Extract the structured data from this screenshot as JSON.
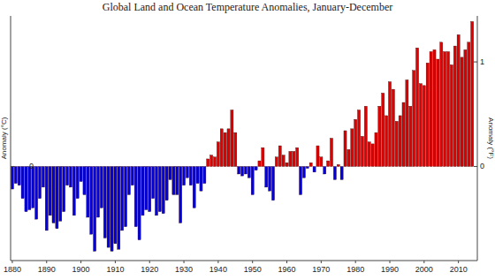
{
  "chart_data": {
    "type": "bar",
    "title": "Global Land and Ocean Temperature Anomalies, January-December",
    "ylabel": "Anomaly (°C)",
    "y2label": "Anomaly (°F)",
    "x": [
      1880,
      1881,
      1882,
      1883,
      1884,
      1885,
      1886,
      1887,
      1888,
      1889,
      1890,
      1891,
      1892,
      1893,
      1894,
      1895,
      1896,
      1897,
      1898,
      1899,
      1900,
      1901,
      1902,
      1903,
      1904,
      1905,
      1906,
      1907,
      1908,
      1909,
      1910,
      1911,
      1912,
      1913,
      1914,
      1915,
      1916,
      1917,
      1918,
      1919,
      1920,
      1921,
      1922,
      1923,
      1924,
      1925,
      1926,
      1927,
      1928,
      1929,
      1930,
      1931,
      1932,
      1933,
      1934,
      1935,
      1936,
      1937,
      1938,
      1939,
      1940,
      1941,
      1942,
      1943,
      1944,
      1945,
      1946,
      1947,
      1948,
      1949,
      1950,
      1951,
      1952,
      1953,
      1954,
      1955,
      1956,
      1957,
      1958,
      1959,
      1960,
      1961,
      1962,
      1963,
      1964,
      1965,
      1966,
      1967,
      1968,
      1969,
      1970,
      1971,
      1972,
      1973,
      1974,
      1975,
      1976,
      1977,
      1978,
      1979,
      1980,
      1981,
      1982,
      1983,
      1984,
      1985,
      1986,
      1987,
      1988,
      1989,
      1990,
      1991,
      1992,
      1993,
      1994,
      1995,
      1996,
      1997,
      1998,
      1999,
      2000,
      2001,
      2002,
      2003,
      2004,
      2005,
      2006,
      2007,
      2008,
      2009,
      2010,
      2011,
      2012,
      2013,
      2014
    ],
    "values": [
      -0.12,
      -0.09,
      -0.1,
      -0.17,
      -0.24,
      -0.23,
      -0.22,
      -0.28,
      -0.17,
      -0.11,
      -0.34,
      -0.26,
      -0.3,
      -0.33,
      -0.29,
      -0.24,
      -0.1,
      -0.11,
      -0.26,
      -0.17,
      -0.08,
      -0.15,
      -0.27,
      -0.36,
      -0.45,
      -0.27,
      -0.22,
      -0.38,
      -0.43,
      -0.45,
      -0.41,
      -0.44,
      -0.34,
      -0.32,
      -0.15,
      -0.1,
      -0.32,
      -0.39,
      -0.26,
      -0.23,
      -0.24,
      -0.17,
      -0.26,
      -0.24,
      -0.25,
      -0.18,
      -0.07,
      -0.15,
      -0.15,
      -0.3,
      -0.1,
      -0.06,
      -0.1,
      -0.22,
      -0.09,
      -0.13,
      -0.09,
      0.04,
      0.06,
      0.05,
      0.13,
      0.2,
      0.18,
      0.2,
      0.3,
      0.18,
      -0.04,
      -0.05,
      -0.04,
      -0.06,
      -0.15,
      -0.02,
      0.03,
      0.1,
      -0.11,
      -0.13,
      -0.18,
      0.05,
      0.11,
      0.06,
      0.02,
      0.08,
      0.08,
      0.1,
      -0.15,
      -0.06,
      -0.01,
      0.02,
      -0.03,
      0.11,
      0.05,
      -0.04,
      0.03,
      0.15,
      -0.07,
      0.01,
      -0.07,
      0.19,
      0.09,
      0.2,
      0.25,
      0.3,
      0.16,
      0.32,
      0.13,
      0.12,
      0.18,
      0.32,
      0.39,
      0.27,
      0.45,
      0.41,
      0.24,
      0.27,
      0.34,
      0.46,
      0.32,
      0.51,
      0.63,
      0.44,
      0.43,
      0.55,
      0.61,
      0.62,
      0.57,
      0.66,
      0.61,
      0.61,
      0.54,
      0.64,
      0.7,
      0.58,
      0.62,
      0.66,
      0.77
    ],
    "colors": [
      "#0000e0",
      "#0000e0",
      "#0000e0",
      "#0000e0",
      "#0000e0",
      "#0000e0",
      "#0000e0",
      "#0000e0",
      "#0000e0",
      "#0000e0",
      "#0000e0",
      "#0000e0",
      "#0000e0",
      "#0000e0",
      "#0000e0",
      "#0000e0",
      "#0000e0",
      "#0000e0",
      "#0000e0",
      "#0000e0",
      "#0000e0",
      "#0000e0",
      "#0000e0",
      "#0000e0",
      "#0000e0",
      "#0000e0",
      "#0000e0",
      "#0000e0",
      "#0000e0",
      "#0000e0",
      "#0000e0",
      "#0000e0",
      "#0000e0",
      "#0000e0",
      "#0000e0",
      "#0000e0",
      "#0000e0",
      "#0000e0",
      "#0000e0",
      "#0000e0",
      "#0000e0",
      "#0000e0",
      "#0000e0",
      "#0000e0",
      "#0000e0",
      "#0000e0",
      "#0000e0",
      "#0000e0",
      "#0000e0",
      "#0000e0",
      "#0000e0",
      "#0000e0",
      "#0000e0",
      "#0000e0",
      "#0000e0",
      "#0000e0",
      "#0000e0",
      "#e00000",
      "#e00000",
      "#e00000",
      "#e00000",
      "#e00000",
      "#e00000",
      "#e00000",
      "#e00000",
      "#e00000",
      "#0000e0",
      "#0000e0",
      "#0000e0",
      "#0000e0",
      "#0000e0",
      "#0000e0",
      "#e00000",
      "#e00000",
      "#0000e0",
      "#0000e0",
      "#0000e0",
      "#e00000",
      "#e00000",
      "#e00000",
      "#e00000",
      "#e00000",
      "#e00000",
      "#e00000",
      "#0000e0",
      "#0000e0",
      "#0000e0",
      "#e00000",
      "#0000e0",
      "#e00000",
      "#e00000",
      "#0000e0",
      "#e00000",
      "#e00000",
      "#0000e0",
      "#e00000",
      "#0000e0",
      "#e00000",
      "#e00000",
      "#e00000",
      "#e00000",
      "#e00000",
      "#e00000",
      "#e00000",
      "#e00000",
      "#e00000",
      "#e00000",
      "#e00000",
      "#e00000",
      "#e00000",
      "#e00000",
      "#e00000",
      "#e00000",
      "#e00000",
      "#e00000",
      "#e00000",
      "#e00000",
      "#e00000",
      "#e00000",
      "#e00000",
      "#e00000",
      "#e00000",
      "#e00000",
      "#e00000",
      "#e00000",
      "#e00000",
      "#e00000",
      "#e00000",
      "#e00000",
      "#e00000",
      "#e00000",
      "#e00000",
      "#e00000",
      "#e00000",
      "#e00000"
    ],
    "xlim": [
      1879.5,
      2015.5
    ],
    "xticks": [
      1880,
      1890,
      1900,
      1910,
      1920,
      1930,
      1940,
      1950,
      1960,
      1970,
      1980,
      1990,
      2000,
      2010
    ],
    "ylim": [
      -0.5,
      0.8
    ],
    "yticks": [
      0
    ],
    "y2lim": [
      -0.9,
      1.44
    ],
    "y2ticks": [
      0,
      1
    ],
    "grid": false
  }
}
